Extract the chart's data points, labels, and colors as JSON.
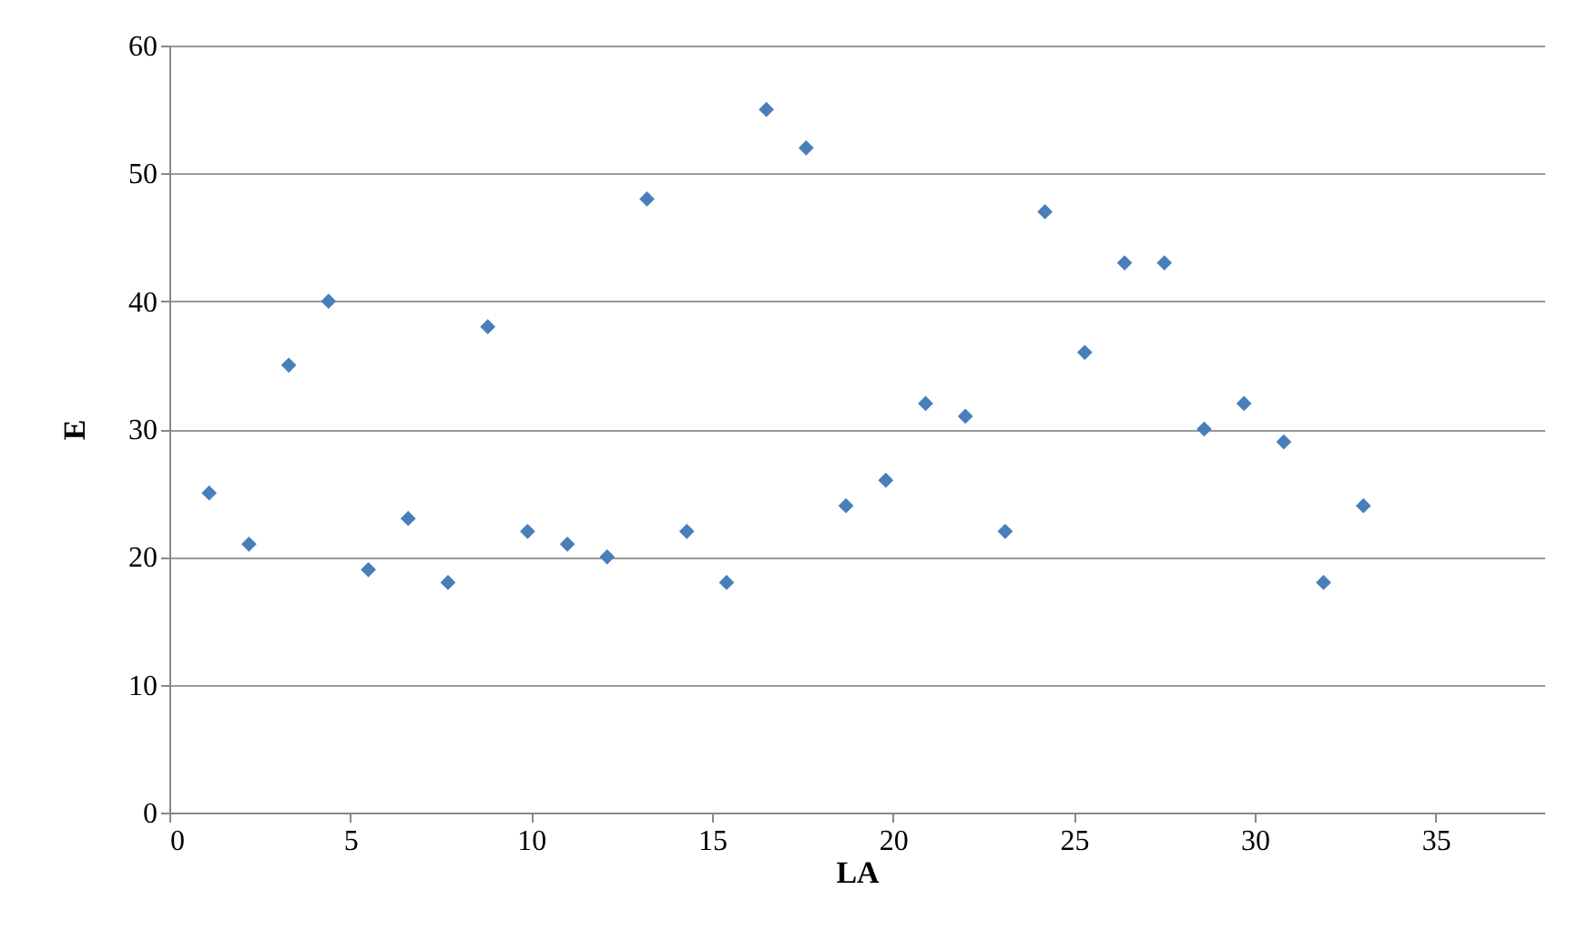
{
  "chart_data": {
    "type": "scatter",
    "xlabel": "LA",
    "ylabel": "E",
    "x": [
      1.1,
      2.2,
      3.3,
      4.4,
      5.5,
      6.6,
      7.7,
      8.8,
      9.9,
      11,
      12.1,
      13.2,
      14.3,
      15.4,
      16.5,
      17.6,
      18.7,
      19.8,
      20.9,
      22,
      23.1,
      24.2,
      25.3,
      26.4,
      27.5,
      28.6,
      29.7,
      30.8,
      31.9,
      33
    ],
    "series": [
      {
        "color": "#4a7ebb",
        "values": [
          25,
          21,
          35,
          40,
          19,
          23,
          18,
          38,
          22,
          21,
          20,
          48,
          22,
          18,
          55,
          52,
          24,
          26,
          32,
          31,
          22,
          47,
          36,
          43,
          43,
          30,
          32,
          29,
          18,
          24
        ]
      }
    ],
    "xlim": [
      0,
      38
    ],
    "xticks": [
      0,
      5,
      10,
      15,
      20,
      25,
      30,
      35
    ],
    "ylim": [
      0,
      60
    ],
    "yticks": [
      0,
      10,
      20,
      30,
      40,
      50,
      60
    ],
    "grid": "y",
    "marker": "diamond"
  }
}
